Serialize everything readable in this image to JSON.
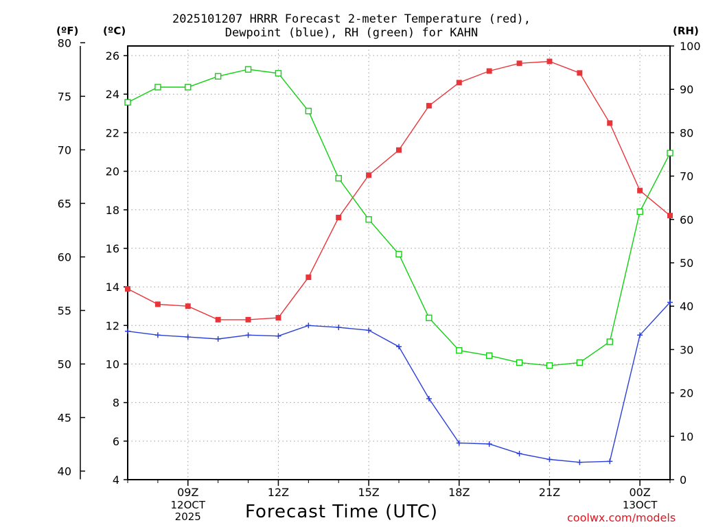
{
  "chart_data": {
    "type": "line",
    "title": [
      "2025101207 HRRR Forecast 2-meter Temperature (red),",
      "Dewpoint (blue), RH (green) for KAHN"
    ],
    "xlabel": "Forecast Time (UTC)",
    "y_left_outer_label": "(ºF)",
    "y_left_inner_label": "(ºC)",
    "y_right_label": "(RH)",
    "x_hours": [
      7,
      8,
      9,
      10,
      11,
      12,
      13,
      14,
      15,
      16,
      17,
      18,
      19,
      20,
      21,
      22,
      23,
      24,
      25
    ],
    "x_range": [
      7,
      25
    ],
    "x_ticks": [
      {
        "h": 9,
        "label": "09Z"
      },
      {
        "h": 12,
        "label": "12Z"
      },
      {
        "h": 15,
        "label": "15Z"
      },
      {
        "h": 18,
        "label": "18Z"
      },
      {
        "h": 21,
        "label": "21Z"
      },
      {
        "h": 24,
        "label": "00Z"
      }
    ],
    "date_labels": [
      {
        "h": 9,
        "lines": [
          "12OCT",
          "2025"
        ]
      },
      {
        "h": 24,
        "lines": [
          "13OCT"
        ]
      }
    ],
    "celsius_range": [
      4,
      26.5
    ],
    "celsius_ticks": [
      4,
      6,
      8,
      10,
      12,
      14,
      16,
      18,
      20,
      22,
      24,
      26
    ],
    "fahrenheit_ticks": [
      40,
      45,
      50,
      55,
      60,
      65,
      70,
      75,
      80
    ],
    "rh_range": [
      0,
      100
    ],
    "rh_ticks": [
      0,
      10,
      20,
      30,
      40,
      50,
      60,
      70,
      80,
      90,
      100
    ],
    "series": [
      {
        "name": "Temperature",
        "unit": "C",
        "color": "#e8353a",
        "marker": "filled-square",
        "values": [
          13.9,
          13.1,
          13.0,
          12.3,
          12.3,
          12.4,
          14.5,
          17.6,
          19.8,
          21.1,
          23.4,
          24.6,
          25.2,
          25.6,
          25.7,
          25.1,
          22.5,
          19.0,
          17.7
        ]
      },
      {
        "name": "Dewpoint",
        "unit": "C",
        "color": "#2a3fd8",
        "marker": "plus",
        "values": [
          11.7,
          11.5,
          11.4,
          11.3,
          11.5,
          11.45,
          12.0,
          11.9,
          11.75,
          10.9,
          8.2,
          5.9,
          5.85,
          5.35,
          5.05,
          4.9,
          4.95,
          11.5,
          13.2
        ]
      },
      {
        "name": "RH",
        "unit": "%",
        "color": "#10d010",
        "marker": "open-square",
        "values": [
          87.0,
          90.5,
          90.5,
          93.0,
          94.6,
          93.7,
          85.0,
          69.5,
          60.0,
          52.0,
          37.3,
          29.8,
          28.6,
          27.0,
          26.3,
          27.0,
          31.8,
          61.8,
          75.3
        ]
      }
    ]
  },
  "watermark": "coolwx.com/models"
}
